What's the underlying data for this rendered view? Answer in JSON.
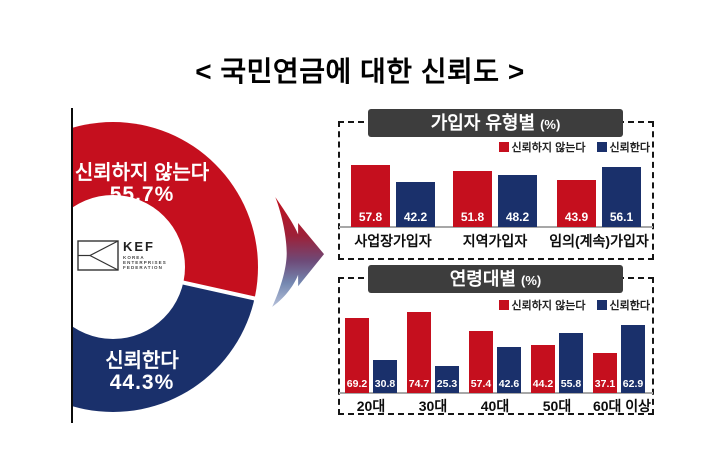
{
  "title": "< 국민연금에 대한 신뢰도 >",
  "legend": {
    "distrust": "신뢰하지 않는다",
    "trust": "신뢰한다"
  },
  "colors": {
    "distrust": "#c50f1e",
    "trust": "#1a306b",
    "header_bg": "#3d3d3d",
    "axis_line": "#a7a7a7",
    "arrow_top": "#c2121f",
    "arrow_mid": "#6e4a78",
    "arrow_bottom": "#b6c1da"
  },
  "logo": {
    "name": "KEF",
    "org_lines": [
      "KOREA",
      "ENTERPRISES",
      "FEDERATION"
    ]
  },
  "donut": {
    "distrust": {
      "label": "신뢰하지 않는다",
      "pct_label": "55.7%",
      "value": 55.7
    },
    "trust": {
      "label": "신뢰한다",
      "pct_label": "44.3%",
      "value": 44.3
    }
  },
  "panels": [
    {
      "title": "가입자 유형별",
      "unit": "(%)"
    },
    {
      "title": "연령대별",
      "unit": "(%)"
    }
  ],
  "chart_data": [
    {
      "type": "pie",
      "title": "국민연금에 대한 신뢰도",
      "labels": [
        "신뢰하지 않는다",
        "신뢰한다"
      ],
      "values": [
        55.7,
        44.3
      ],
      "colors": [
        "#c50f1e",
        "#1a306b"
      ],
      "style": "donut, left portion cropped by vertical line"
    },
    {
      "type": "bar",
      "title": "가입자 유형별 (%)",
      "categories": [
        "사업장가입자",
        "지역가입자",
        "임의(계속)가입자"
      ],
      "series": [
        {
          "name": "신뢰하지 않는다",
          "color": "#c50f1e",
          "values": [
            57.8,
            51.8,
            43.9
          ]
        },
        {
          "name": "신뢰한다",
          "color": "#1a306b",
          "values": [
            42.2,
            48.2,
            56.1
          ]
        }
      ],
      "ylim": [
        0,
        100
      ],
      "grid": false,
      "legend_position": "top-right",
      "value_labels": "inside bar bottom, white"
    },
    {
      "type": "bar",
      "title": "연령대별 (%)",
      "categories": [
        "20대",
        "30대",
        "40대",
        "50대",
        "60대 이상"
      ],
      "series": [
        {
          "name": "신뢰하지 않는다",
          "color": "#c50f1e",
          "values": [
            69.2,
            74.7,
            57.4,
            44.2,
            37.1
          ]
        },
        {
          "name": "신뢰한다",
          "color": "#1a306b",
          "values": [
            30.8,
            25.3,
            42.6,
            55.8,
            62.9
          ]
        }
      ],
      "ylim": [
        0,
        100
      ],
      "grid": false,
      "legend_position": "top-right",
      "value_labels": "inside bar bottom, white"
    }
  ]
}
